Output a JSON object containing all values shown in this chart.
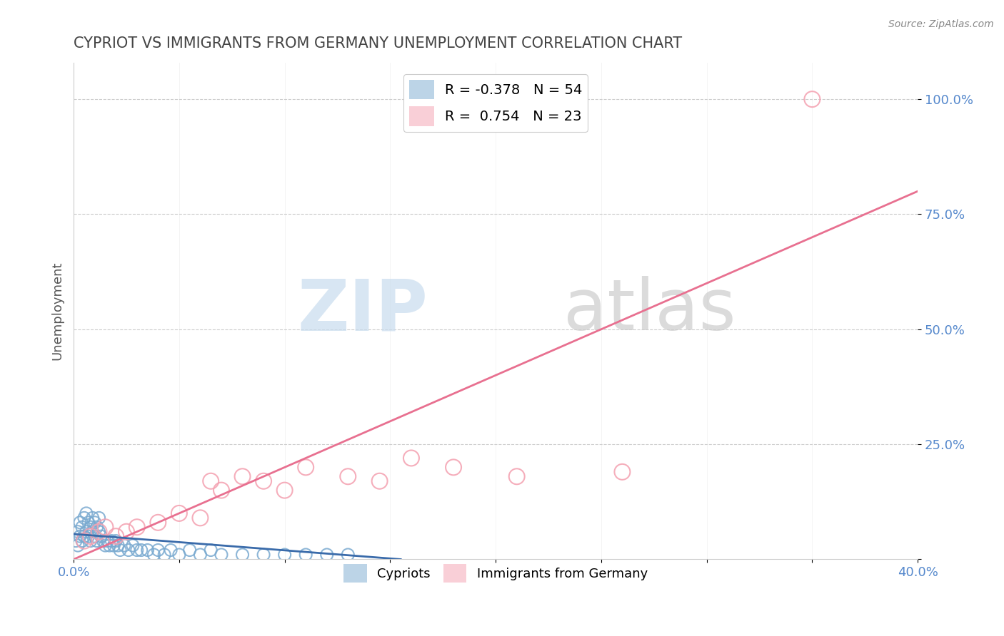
{
  "title": "CYPRIOT VS IMMIGRANTS FROM GERMANY UNEMPLOYMENT CORRELATION CHART",
  "source": "Source: ZipAtlas.com",
  "ylabel_label": "Unemployment",
  "xlim": [
    0.0,
    0.4
  ],
  "ylim": [
    0.0,
    1.08
  ],
  "cypriot_R": -0.378,
  "cypriot_N": 54,
  "germany_R": 0.754,
  "germany_N": 23,
  "cypriot_color": "#7AAAD0",
  "germany_color": "#F4A0B0",
  "cypriot_line_color": "#3A6BAA",
  "germany_line_color": "#E87090",
  "grid_color": "#CCCCCC",
  "tick_color": "#5588CC",
  "title_color": "#444444",
  "cypriot_x": [
    0.001,
    0.002,
    0.002,
    0.003,
    0.003,
    0.004,
    0.004,
    0.005,
    0.005,
    0.006,
    0.006,
    0.007,
    0.007,
    0.008,
    0.008,
    0.009,
    0.009,
    0.01,
    0.01,
    0.011,
    0.011,
    0.012,
    0.012,
    0.013,
    0.014,
    0.015,
    0.016,
    0.017,
    0.018,
    0.019,
    0.02,
    0.021,
    0.022,
    0.024,
    0.026,
    0.028,
    0.03,
    0.032,
    0.035,
    0.038,
    0.04,
    0.043,
    0.046,
    0.05,
    0.055,
    0.06,
    0.065,
    0.07,
    0.08,
    0.09,
    0.1,
    0.11,
    0.12,
    0.13
  ],
  "cypriot_y": [
    0.04,
    0.03,
    0.06,
    0.05,
    0.08,
    0.04,
    0.07,
    0.05,
    0.09,
    0.06,
    0.1,
    0.05,
    0.08,
    0.04,
    0.07,
    0.06,
    0.09,
    0.05,
    0.08,
    0.04,
    0.07,
    0.06,
    0.09,
    0.05,
    0.04,
    0.03,
    0.04,
    0.03,
    0.04,
    0.03,
    0.04,
    0.03,
    0.02,
    0.03,
    0.02,
    0.03,
    0.02,
    0.02,
    0.02,
    0.01,
    0.02,
    0.01,
    0.02,
    0.01,
    0.02,
    0.01,
    0.02,
    0.01,
    0.01,
    0.01,
    0.01,
    0.01,
    0.01,
    0.01
  ],
  "germany_x": [
    0.005,
    0.008,
    0.012,
    0.015,
    0.02,
    0.025,
    0.03,
    0.04,
    0.05,
    0.06,
    0.065,
    0.07,
    0.08,
    0.09,
    0.1,
    0.11,
    0.13,
    0.145,
    0.16,
    0.18,
    0.21,
    0.26,
    0.35
  ],
  "germany_y": [
    0.04,
    0.05,
    0.06,
    0.07,
    0.05,
    0.06,
    0.07,
    0.08,
    0.1,
    0.09,
    0.17,
    0.15,
    0.18,
    0.17,
    0.15,
    0.2,
    0.18,
    0.17,
    0.22,
    0.2,
    0.18,
    0.19,
    1.0
  ],
  "germany_line_x0": 0.0,
  "germany_line_y0": 0.0,
  "germany_line_x1": 0.4,
  "germany_line_y1": 0.8,
  "cypriot_line_x0": 0.0,
  "cypriot_line_y0": 0.055,
  "cypriot_line_x1": 0.155,
  "cypriot_line_y1": 0.0
}
